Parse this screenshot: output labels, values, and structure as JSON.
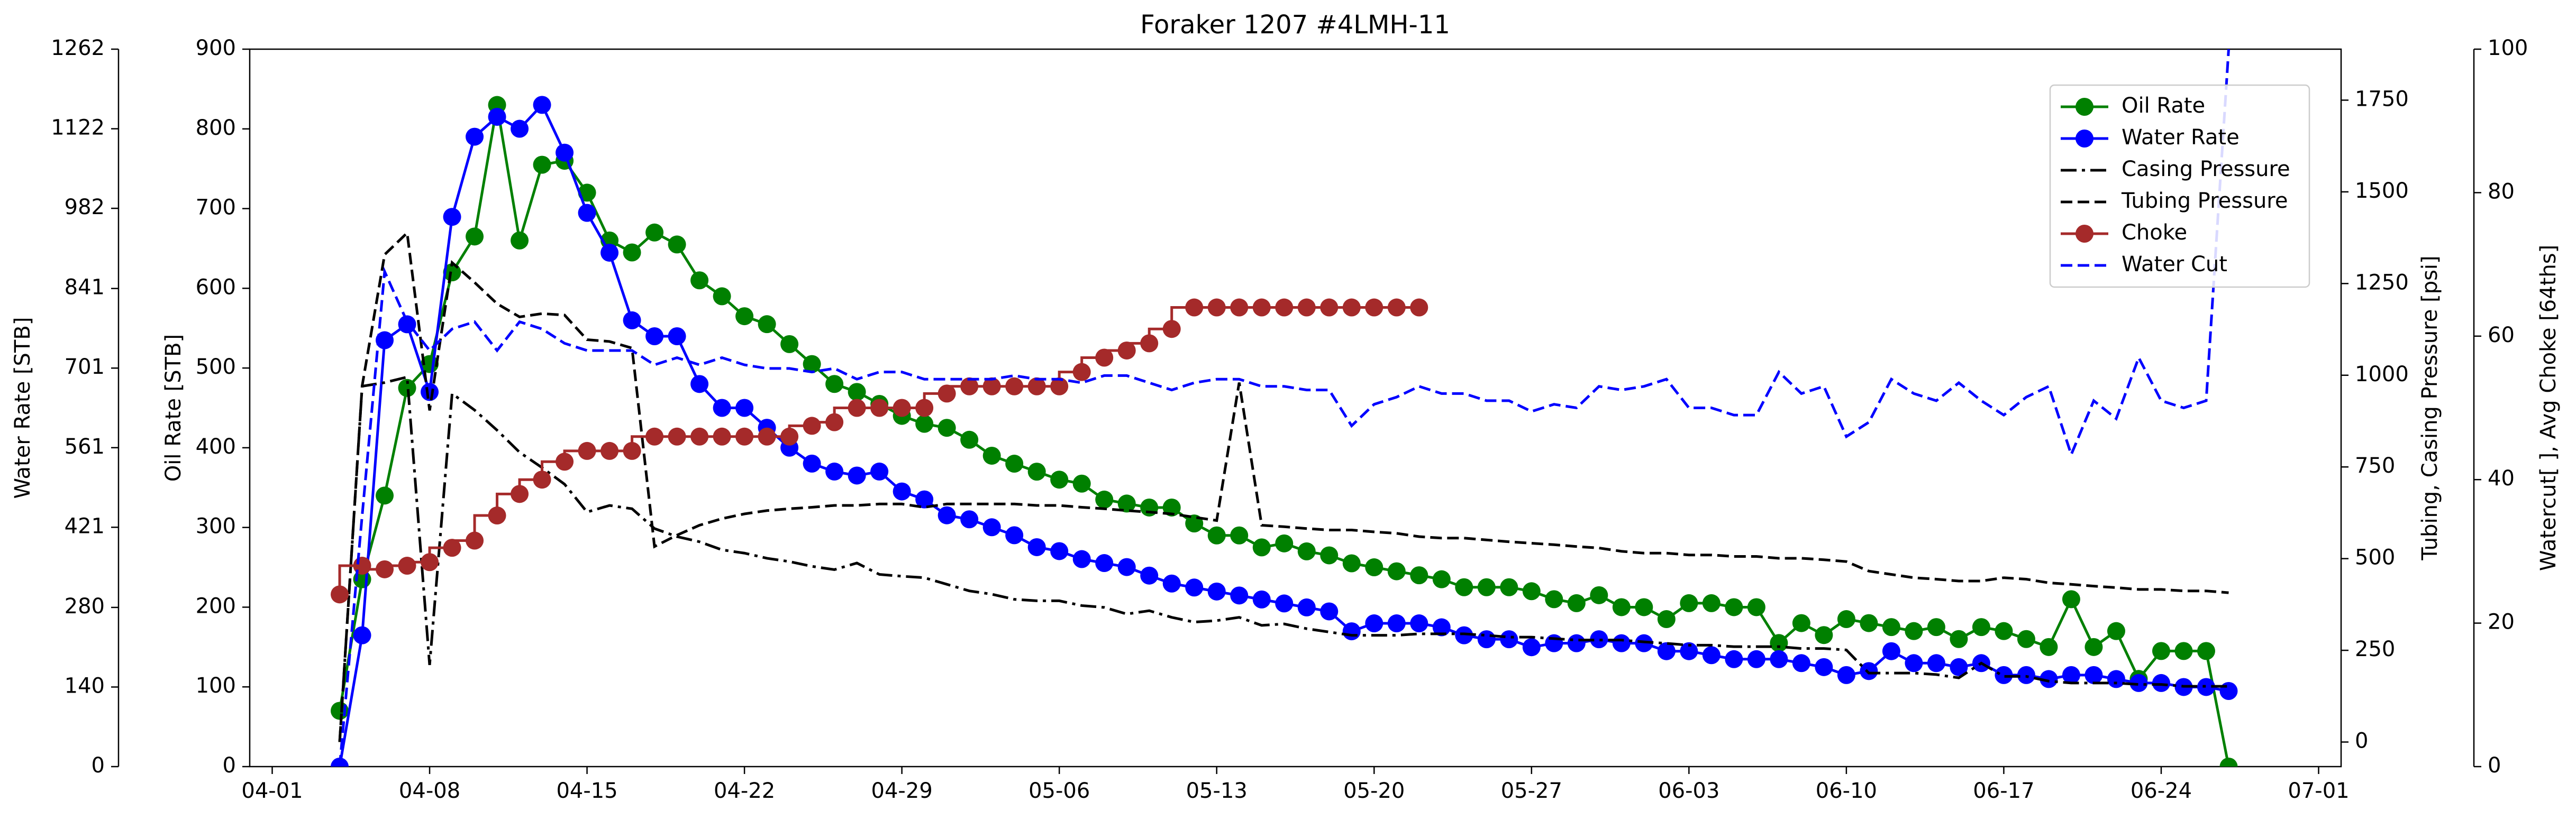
{
  "chart_data": {
    "type": "line",
    "title": "Foraker 1207 #4LMH-11",
    "x": [
      "04-04",
      "04-05",
      "04-06",
      "04-07",
      "04-08",
      "04-09",
      "04-10",
      "04-11",
      "04-12",
      "04-13",
      "04-14",
      "04-15",
      "04-16",
      "04-17",
      "04-18",
      "04-19",
      "04-20",
      "04-21",
      "04-22",
      "04-23",
      "04-24",
      "04-25",
      "04-26",
      "04-27",
      "04-28",
      "04-29",
      "04-30",
      "05-01",
      "05-02",
      "05-03",
      "05-04",
      "05-05",
      "05-06",
      "05-07",
      "05-08",
      "05-09",
      "05-10",
      "05-11",
      "05-12",
      "05-13",
      "05-14",
      "05-15",
      "05-16",
      "05-17",
      "05-18",
      "05-19",
      "05-20",
      "05-21",
      "05-22",
      "05-23",
      "05-24",
      "05-25",
      "05-26",
      "05-27",
      "05-28",
      "05-29",
      "05-30",
      "05-31",
      "06-01",
      "06-02",
      "06-03",
      "06-04",
      "06-05",
      "06-06",
      "06-07",
      "06-08",
      "06-09",
      "06-10",
      "06-11",
      "06-12",
      "06-13",
      "06-14",
      "06-15",
      "06-16",
      "06-17",
      "06-18",
      "06-19",
      "06-20",
      "06-21",
      "06-22",
      "06-23",
      "06-24",
      "06-25",
      "06-26",
      "06-27"
    ],
    "xlim": [
      "03-31",
      "07-02"
    ],
    "xticks": [
      "04-01",
      "04-08",
      "04-15",
      "04-22",
      "04-29",
      "05-06",
      "05-13",
      "05-20",
      "05-27",
      "06-03",
      "06-10",
      "06-17",
      "06-24",
      "07-01"
    ],
    "ylabel": "Oil Rate [STB]",
    "ylim": [
      0,
      900
    ],
    "yticks": [
      0,
      100,
      200,
      300,
      400,
      500,
      600,
      700,
      800,
      900
    ],
    "water_ylabel": "Water Rate [STB]",
    "water_ylim": [
      0,
      1262
    ],
    "water_yticks": [
      0,
      140,
      280,
      421,
      561,
      701,
      841,
      982,
      1122,
      1262
    ],
    "y2label": "Tubing, Casing Pressure [psi]",
    "y2lim": [
      -67,
      1889
    ],
    "y2ticks": [
      0,
      250,
      500,
      750,
      1000,
      1250,
      1500,
      1750
    ],
    "y3label": "Watercut[ ], Avg Choke [64ths]",
    "y3lim": [
      0,
      100
    ],
    "y3ticks": [
      0,
      20,
      40,
      60,
      80,
      100
    ],
    "legend": "upper right",
    "grid": false,
    "series": [
      {
        "name": "Oil Rate",
        "color": "#008000",
        "axis": "y",
        "marker": "o",
        "dash": "solid",
        "values": [
          70,
          235,
          340,
          475,
          505,
          620,
          665,
          830,
          660,
          755,
          760,
          720,
          660,
          645,
          670,
          655,
          610,
          590,
          565,
          555,
          530,
          505,
          480,
          470,
          455,
          440,
          430,
          425,
          410,
          390,
          380,
          370,
          360,
          355,
          335,
          330,
          325,
          325,
          305,
          290,
          290,
          275,
          280,
          270,
          265,
          255,
          250,
          245,
          240,
          235,
          225,
          225,
          225,
          220,
          210,
          205,
          215,
          200,
          200,
          185,
          205,
          205,
          200,
          200,
          155,
          180,
          165,
          185,
          180,
          175,
          170,
          175,
          160,
          175,
          170,
          160,
          150,
          210,
          150,
          170,
          110,
          145,
          145,
          145,
          0
        ]
      },
      {
        "name": "Water Rate",
        "color": "#0000ff",
        "axis": "water",
        "marker": "o",
        "dash": "solid",
        "values": [
          0,
          231,
          750,
          778,
          659,
          967,
          1108,
          1143,
          1122,
          1164,
          1080,
          974,
          904,
          785,
          757,
          757,
          673,
          631,
          631,
          596,
          561,
          533,
          519,
          512,
          519,
          484,
          470,
          442,
          435,
          421,
          407,
          386,
          379,
          365,
          358,
          351,
          336,
          322,
          315,
          308,
          301,
          294,
          287,
          280,
          273,
          238,
          252,
          252,
          252,
          245,
          231,
          224,
          224,
          210,
          217,
          217,
          224,
          217,
          217,
          203,
          203,
          196,
          189,
          189,
          189,
          182,
          175,
          161,
          168,
          203,
          182,
          182,
          175,
          182,
          161,
          161,
          154,
          161,
          161,
          154,
          147,
          147,
          140,
          140,
          133
        ]
      },
      {
        "name": "Casing Pressure",
        "color": "#000000",
        "axis": "y2",
        "marker": "none",
        "dash": "dashdot",
        "values": [
          0,
          970,
          980,
          995,
          210,
          950,
          905,
          850,
          790,
          748,
          703,
          627,
          645,
          636,
          582,
          560,
          546,
          524,
          515,
          501,
          492,
          479,
          470,
          488,
          457,
          452,
          448,
          430,
          412,
          403,
          389,
          385,
          385,
          372,
          367,
          349,
          358,
          340,
          327,
          331,
          340,
          318,
          322,
          309,
          300,
          291,
          291,
          291,
          295,
          295,
          295,
          291,
          286,
          286,
          282,
          278,
          278,
          278,
          273,
          269,
          264,
          264,
          260,
          260,
          260,
          255,
          255,
          251,
          188,
          188,
          188,
          184,
          175,
          215,
          179,
          179,
          166,
          161,
          161,
          161,
          157,
          157,
          152,
          152,
          152
        ]
      },
      {
        "name": "Tubing Pressure",
        "color": "#000000",
        "axis": "y2",
        "marker": "none",
        "dash": "dashed",
        "values": [
          0,
          971,
          1329,
          1388,
          904,
          1307,
          1253,
          1195,
          1159,
          1168,
          1164,
          1097,
          1092,
          1074,
          533,
          564,
          591,
          609,
          622,
          631,
          636,
          640,
          645,
          645,
          649,
          649,
          640,
          649,
          649,
          649,
          649,
          645,
          645,
          640,
          636,
          631,
          627,
          622,
          613,
          604,
          980,
          591,
          587,
          582,
          578,
          578,
          573,
          569,
          560,
          556,
          556,
          551,
          546,
          542,
          538,
          533,
          529,
          520,
          515,
          515,
          510,
          510,
          506,
          506,
          501,
          501,
          497,
          492,
          466,
          457,
          448,
          444,
          439,
          439,
          448,
          444,
          434,
          430,
          425,
          421,
          416,
          416,
          412,
          412,
          407
        ]
      },
      {
        "name": "Choke",
        "color": "#a52a2a",
        "axis": "y3",
        "marker": "o",
        "dash": "solid",
        "drawstyle": "steps-pre",
        "values": [
          24,
          28,
          27.5,
          28,
          28.5,
          30.5,
          31.5,
          35,
          38,
          40,
          42.5,
          44,
          44,
          44,
          46,
          46,
          46,
          46,
          46,
          46,
          46,
          47.5,
          48,
          50,
          50,
          50,
          50,
          52,
          53,
          53,
          53,
          53,
          53,
          55,
          57,
          58,
          59,
          61,
          64,
          64,
          64,
          64,
          64,
          64,
          64,
          64,
          64,
          64,
          64,
          null,
          null,
          null,
          null,
          null,
          null,
          null,
          null,
          null,
          null,
          null,
          null,
          null,
          null,
          null,
          null,
          null,
          null,
          null,
          null,
          null,
          null,
          null,
          null,
          null,
          null,
          null,
          null,
          null,
          null,
          null,
          null,
          null,
          null,
          null,
          null
        ]
      },
      {
        "name": "Water Cut",
        "color": "#0000ff",
        "axis": "y3",
        "marker": "none",
        "dash": "dashed",
        "values": [
          0,
          35,
          69,
          62,
          58,
          61,
          62,
          58,
          62,
          61,
          59,
          58,
          58,
          58,
          56,
          57,
          56,
          57,
          56,
          55.5,
          55.5,
          55,
          55.5,
          54,
          55,
          55,
          54,
          54,
          54,
          54,
          54.5,
          54,
          54,
          53.5,
          54.5,
          54.5,
          53.5,
          52.5,
          53.5,
          54,
          54,
          53,
          53,
          52.5,
          52.5,
          47.5,
          50.5,
          51.5,
          53,
          52,
          52,
          51,
          51,
          49.5,
          50.5,
          50,
          53,
          52.5,
          53,
          54,
          50,
          50,
          49,
          49,
          55,
          52,
          53,
          46,
          48,
          54,
          52,
          51,
          53.5,
          51,
          49,
          51.5,
          53,
          43.5,
          51,
          48.5,
          57,
          51,
          50,
          51,
          100
        ]
      }
    ]
  }
}
